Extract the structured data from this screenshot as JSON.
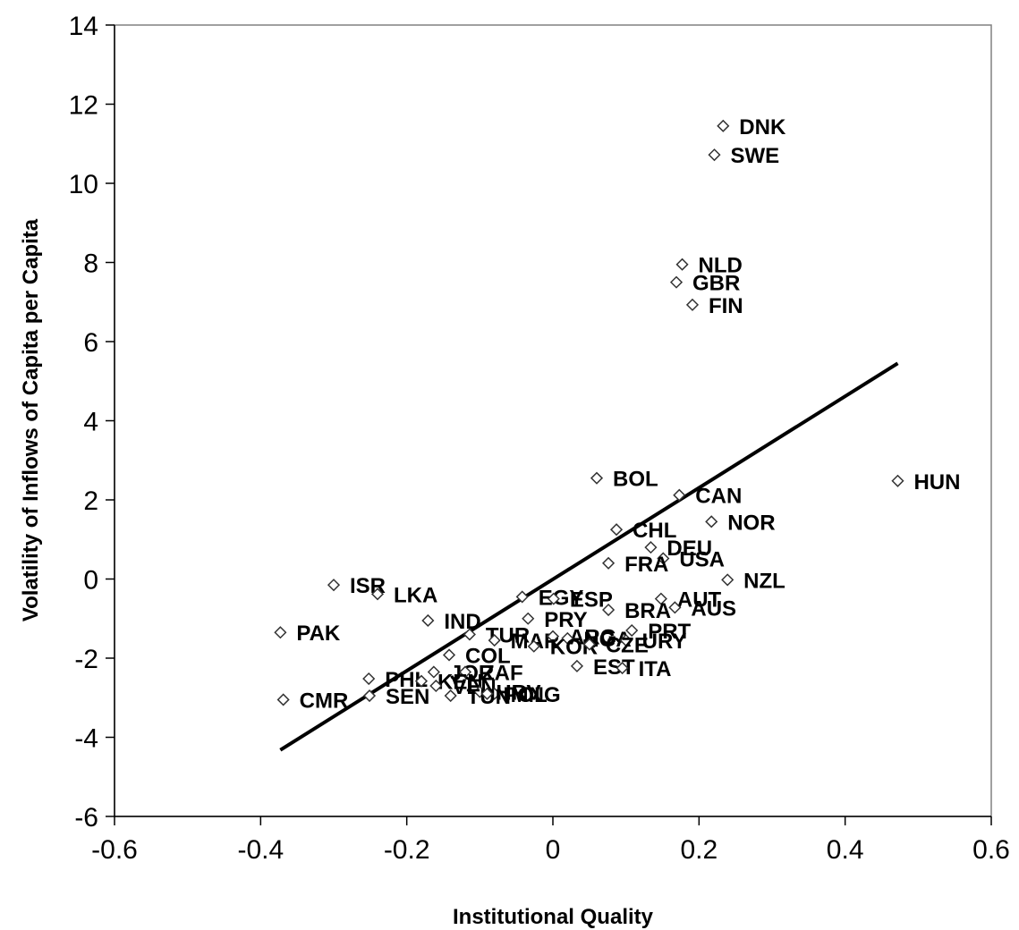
{
  "chart_data": {
    "type": "scatter",
    "title": "",
    "xlabel": "Institutional Quality",
    "ylabel": "Volatility of Inflows of Capita per Capita",
    "xlim": [
      -0.6,
      0.6
    ],
    "ylim": [
      -6,
      14
    ],
    "xticks": [
      "-0.6",
      "-0.4",
      "-0.2",
      "0",
      "0.2",
      "0.4",
      "0.6"
    ],
    "yticks": [
      "14",
      "12",
      "10",
      "8",
      "6",
      "4",
      "2",
      "0",
      "-2",
      "-4",
      "-6"
    ],
    "grid": false,
    "points": [
      {
        "label": "DNK",
        "x": 0.233,
        "y": 11.45
      },
      {
        "label": "SWE",
        "x": 0.221,
        "y": 10.72
      },
      {
        "label": "NLD",
        "x": 0.177,
        "y": 7.95
      },
      {
        "label": "GBR",
        "x": 0.169,
        "y": 7.5
      },
      {
        "label": "FIN",
        "x": 0.191,
        "y": 6.93
      },
      {
        "label": "HUN",
        "x": 0.472,
        "y": 2.48
      },
      {
        "label": "BOL",
        "x": 0.06,
        "y": 2.55
      },
      {
        "label": "CAN",
        "x": 0.173,
        "y": 2.12
      },
      {
        "label": "NOR",
        "x": 0.217,
        "y": 1.45
      },
      {
        "label": "CHL",
        "x": 0.087,
        "y": 1.25
      },
      {
        "label": "DEU",
        "x": 0.134,
        "y": 0.8
      },
      {
        "label": "USA",
        "x": 0.151,
        "y": 0.52
      },
      {
        "label": "FRA",
        "x": 0.076,
        "y": 0.4
      },
      {
        "label": "NZL",
        "x": 0.239,
        "y": -0.02
      },
      {
        "label": "ISR",
        "x": -0.3,
        "y": -0.15
      },
      {
        "label": "LKA",
        "x": -0.24,
        "y": -0.38
      },
      {
        "label": "EGY",
        "x": -0.042,
        "y": -0.45
      },
      {
        "label": "ESP",
        "x": 0.001,
        "y": -0.5
      },
      {
        "label": "AUT",
        "x": 0.148,
        "y": -0.5
      },
      {
        "label": "AUS",
        "x": 0.167,
        "y": -0.72
      },
      {
        "label": "BRA",
        "x": 0.076,
        "y": -0.78
      },
      {
        "label": "PRY",
        "x": -0.034,
        "y": -1.0
      },
      {
        "label": "IND",
        "x": -0.171,
        "y": -1.05
      },
      {
        "label": "PAK",
        "x": -0.373,
        "y": -1.35
      },
      {
        "label": "TUR",
        "x": -0.114,
        "y": -1.4
      },
      {
        "label": "MAR",
        "x": -0.08,
        "y": -1.55
      },
      {
        "label": "ARG",
        "x": 0.0,
        "y": -1.45
      },
      {
        "label": "NGA",
        "x": 0.02,
        "y": -1.5
      },
      {
        "label": "PRT",
        "x": 0.108,
        "y": -1.3
      },
      {
        "label": "URY",
        "x": 0.1,
        "y": -1.55
      },
      {
        "label": "KOR",
        "x": -0.026,
        "y": -1.7
      },
      {
        "label": "CZE",
        "x": 0.05,
        "y": -1.65
      },
      {
        "label": "COL",
        "x": -0.142,
        "y": -1.92
      },
      {
        "label": "EST",
        "x": 0.033,
        "y": -2.2
      },
      {
        "label": "ITA",
        "x": 0.095,
        "y": -2.25
      },
      {
        "label": "JOR",
        "x": -0.163,
        "y": -2.35
      },
      {
        "label": "ZAF",
        "x": -0.12,
        "y": -2.35
      },
      {
        "label": "PHL",
        "x": -0.252,
        "y": -2.52
      },
      {
        "label": "KEN",
        "x": -0.18,
        "y": -2.58
      },
      {
        "label": "VEN",
        "x": -0.16,
        "y": -2.7
      },
      {
        "label": "HRV",
        "x": -0.1,
        "y": -2.85
      },
      {
        "label": "MNG",
        "x": -0.08,
        "y": -2.9
      },
      {
        "label": "CMR",
        "x": -0.369,
        "y": -3.05
      },
      {
        "label": "SEN",
        "x": -0.251,
        "y": -2.95
      },
      {
        "label": "TUN",
        "x": -0.14,
        "y": -2.95
      },
      {
        "label": "POL",
        "x": -0.09,
        "y": -2.9
      }
    ],
    "trendline": {
      "x": [
        -0.373,
        0.472
      ],
      "y": [
        -4.32,
        5.45
      ]
    }
  }
}
